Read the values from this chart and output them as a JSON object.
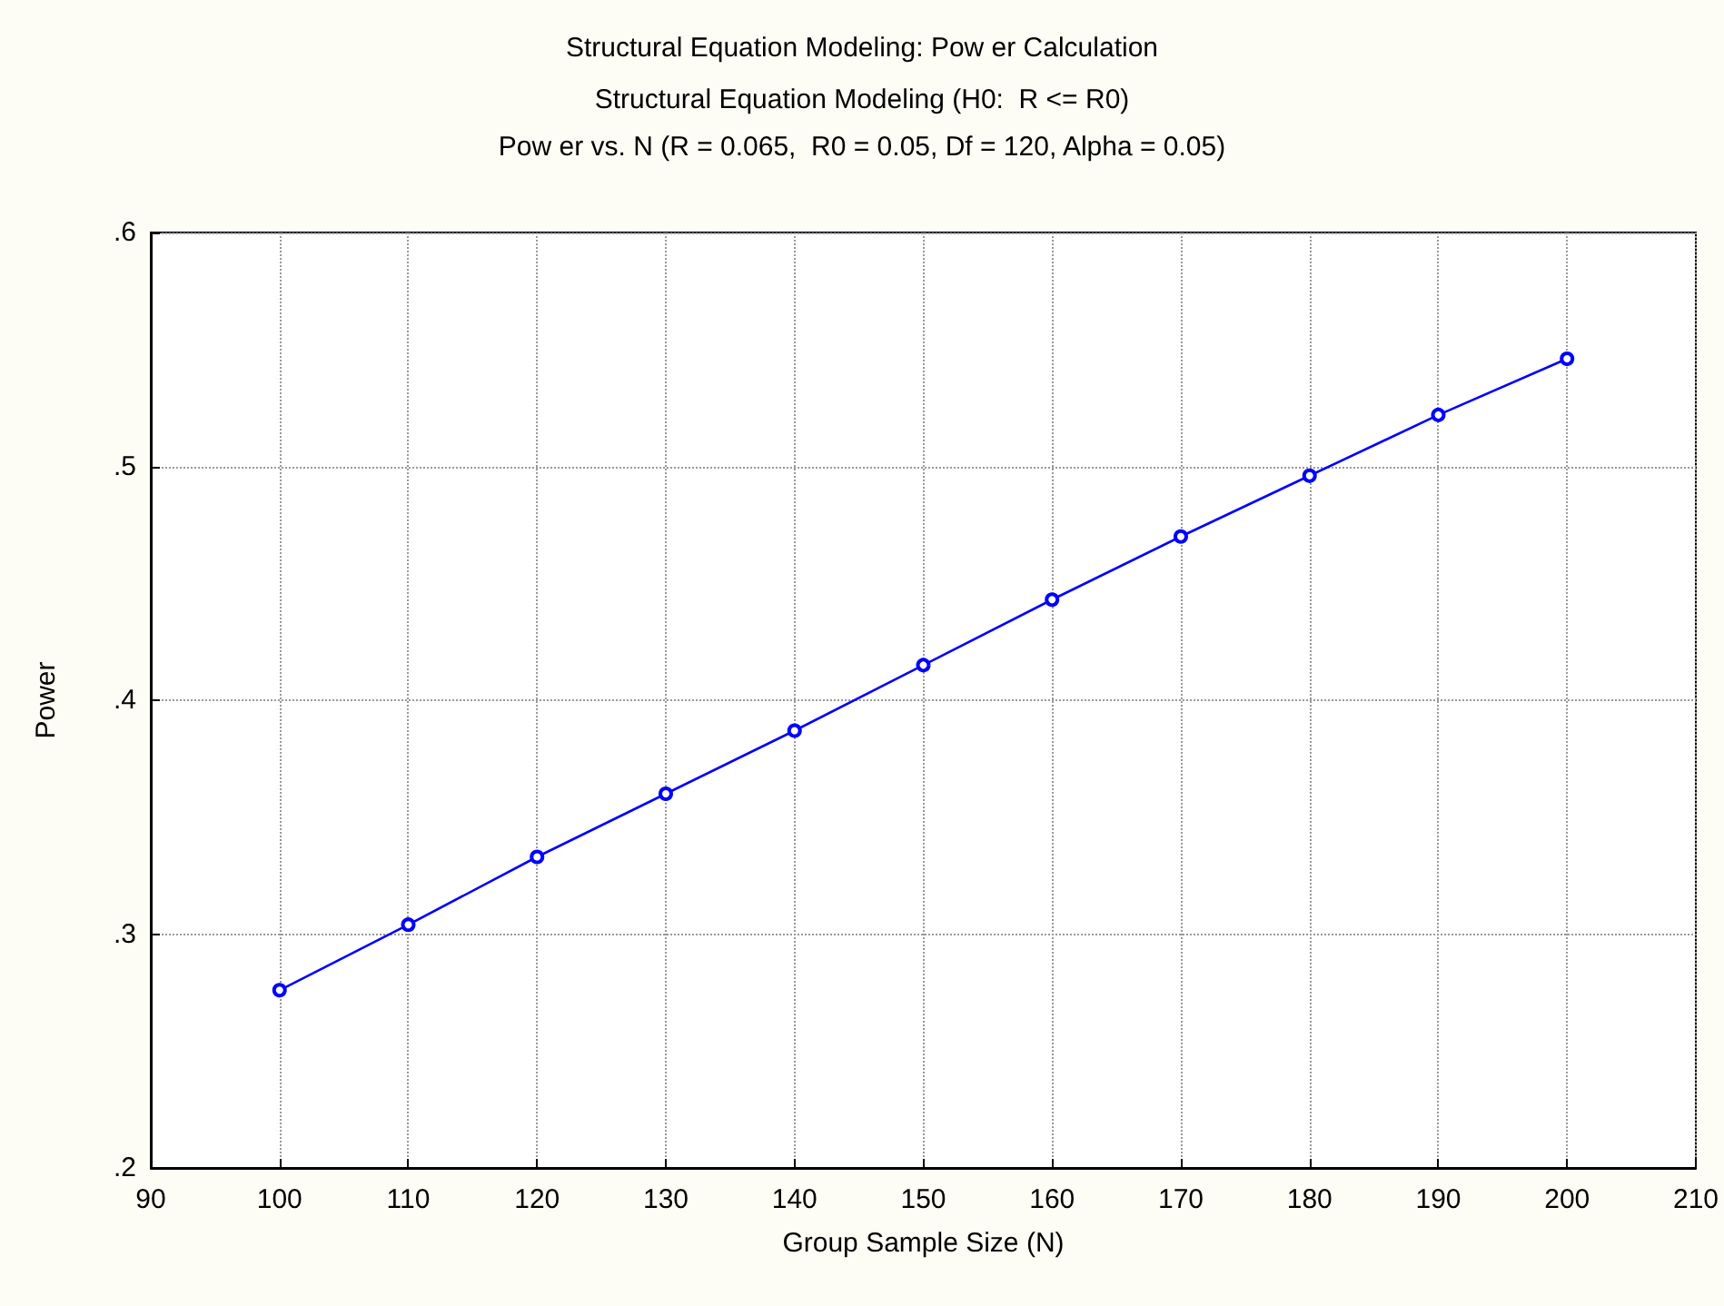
{
  "chart_data": {
    "type": "line",
    "title": "Structural Equation Modeling: Pow er Calculation",
    "subtitle": "Structural Equation Modeling (H0:  R <= R0)\nPow er vs. N (R = 0.065,  R0 = 0.05, Df = 120, Alpha = 0.05)",
    "xlabel": "Group Sample Size (N)",
    "ylabel": "Power",
    "x": [
      100,
      110,
      120,
      130,
      140,
      150,
      160,
      170,
      180,
      190,
      200
    ],
    "series": [
      {
        "color": "#0000ff",
        "values": [
          0.276,
          0.304,
          0.333,
          0.36,
          0.387,
          0.415,
          0.443,
          0.47,
          0.496,
          0.522,
          0.546
        ]
      }
    ],
    "xlim": [
      90,
      210
    ],
    "xticks": [
      90,
      100,
      110,
      120,
      130,
      140,
      150,
      160,
      170,
      180,
      190,
      200,
      210
    ],
    "ylim": [
      0.2,
      0.6
    ],
    "yticks": [
      {
        "value": 0.2,
        "label": ".2"
      },
      {
        "value": 0.3,
        "label": ".3"
      },
      {
        "value": 0.4,
        "label": ".4"
      },
      {
        "value": 0.5,
        "label": ".5"
      },
      {
        "value": 0.6,
        "label": ".6"
      }
    ],
    "grid": true,
    "marker": "circle",
    "line_style": "solid"
  }
}
